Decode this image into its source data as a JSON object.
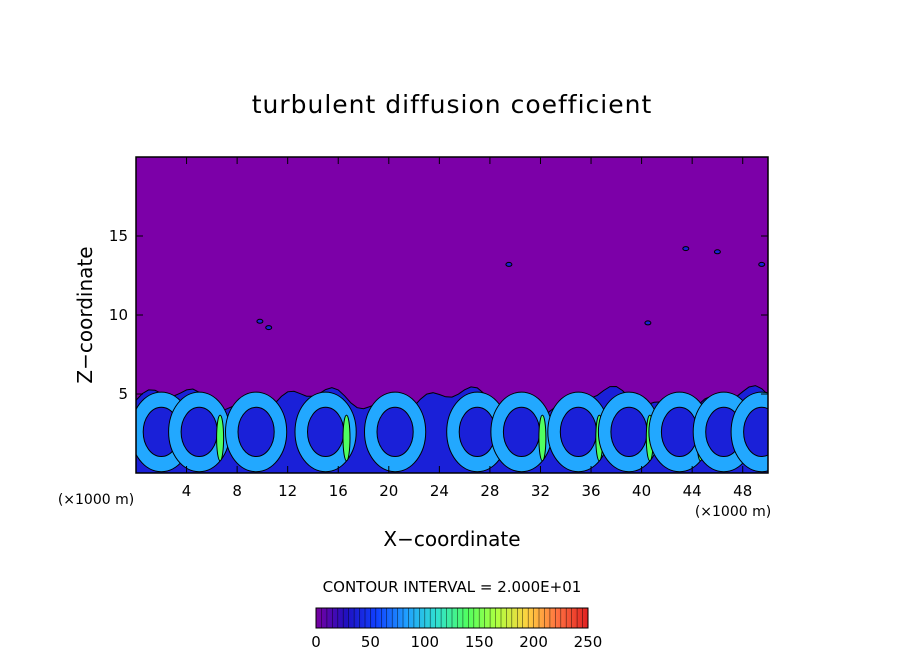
{
  "chart_data": {
    "type": "heatmap",
    "title": "turbulent diffusion coefficient",
    "xlabel": "X−coordinate",
    "ylabel": "Z−coordinate",
    "x_unit_left": "(×1000 m)",
    "x_unit_right": "(×1000 m)",
    "xlim": [
      0,
      50
    ],
    "ylim": [
      0,
      20
    ],
    "x_ticks": [
      "4",
      "8",
      "12",
      "16",
      "20",
      "24",
      "28",
      "32",
      "36",
      "40",
      "44",
      "48"
    ],
    "x_tick_values": [
      4,
      8,
      12,
      16,
      20,
      24,
      28,
      32,
      36,
      40,
      44,
      48
    ],
    "y_ticks": [
      "5",
      "10",
      "15"
    ],
    "y_tick_values": [
      5,
      10,
      15
    ],
    "background_value": 0,
    "turbulent_layer_top": 5.5,
    "eddy_cells_x": [
      2,
      5,
      9.5,
      15,
      20.5,
      27,
      30.5,
      35,
      39,
      43,
      46.5,
      49.5
    ],
    "eddy_cell_max_values": [
      80,
      160,
      100,
      140,
      90,
      110,
      150,
      120,
      130,
      140,
      110,
      90
    ],
    "contour_interval_text": "CONTOUR INTERVAL = 2.000E+01",
    "contour_interval": 20,
    "colorbar": {
      "min": 0,
      "max": 250,
      "tick_labels": [
        "0",
        "50",
        "100",
        "150",
        "200",
        "250"
      ],
      "tick_values": [
        0,
        50,
        100,
        150,
        200,
        250
      ]
    },
    "colors": {
      "background_field": "#7c00a8",
      "low": "#1a20d8",
      "mid": "#22a8ff",
      "high": "#50ff60",
      "colormap": [
        "#7800a0",
        "#2010c0",
        "#1040ff",
        "#20a0ff",
        "#30e0d0",
        "#50ff60",
        "#b0ff40",
        "#ffd040",
        "#ff7040",
        "#e02020"
      ]
    }
  }
}
